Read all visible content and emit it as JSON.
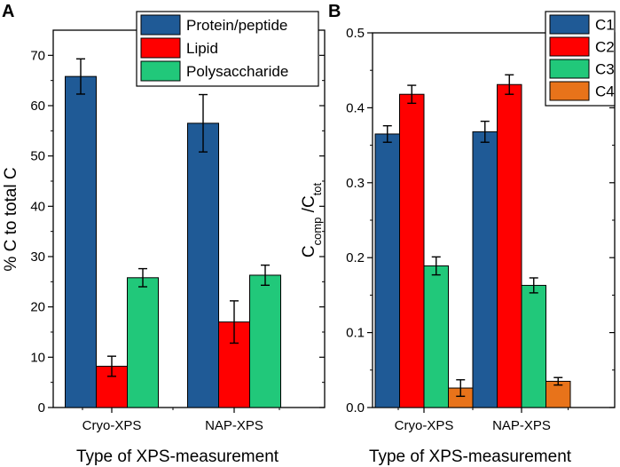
{
  "chart_data": [
    {
      "panel": "A",
      "type": "bar",
      "categories": [
        "Cryo-XPS",
        "NAP-XPS"
      ],
      "series": [
        {
          "name": "Protein/peptide",
          "color": "#1f5a96",
          "values": [
            65.8,
            56.5
          ],
          "errors": [
            3.5,
            5.7
          ]
        },
        {
          "name": "Lipid",
          "color": "#ff0000",
          "values": [
            8.2,
            17.0
          ],
          "errors": [
            2.0,
            4.2
          ]
        },
        {
          "name": "Polysaccharide",
          "color": "#21c87a",
          "values": [
            25.8,
            26.3
          ],
          "errors": [
            1.8,
            2.0
          ]
        }
      ],
      "ylim": [
        0,
        75
      ],
      "yticks": [
        0,
        10,
        20,
        30,
        40,
        50,
        60,
        70
      ],
      "ytick_labels": [
        "0",
        "10",
        "20",
        "30",
        "40",
        "50",
        "60",
        "70"
      ],
      "ylabel": "% C to total C",
      "xlabel": "Type of XPS-measurement",
      "legend": "top-right"
    },
    {
      "panel": "B",
      "type": "bar",
      "categories": [
        "Cryo-XPS",
        "NAP-XPS"
      ],
      "series": [
        {
          "name": "C1",
          "color": "#1f5a96",
          "values": [
            0.365,
            0.368
          ],
          "errors": [
            0.011,
            0.014
          ]
        },
        {
          "name": "C2",
          "color": "#ff0000",
          "values": [
            0.418,
            0.431
          ],
          "errors": [
            0.012,
            0.013
          ]
        },
        {
          "name": "C3",
          "color": "#21c87a",
          "values": [
            0.189,
            0.163
          ],
          "errors": [
            0.012,
            0.01
          ]
        },
        {
          "name": "C4",
          "color": "#e8731a",
          "values": [
            0.026,
            0.035
          ],
          "errors": [
            0.011,
            0.005
          ]
        }
      ],
      "ylim": [
        0,
        0.5
      ],
      "yticks": [
        0,
        0.1,
        0.2,
        0.3,
        0.4,
        0.5
      ],
      "ytick_labels": [
        "0.0",
        "0.1",
        "0.2",
        "0.3",
        "0.4",
        "0.5"
      ],
      "ylabel_main": "C",
      "ylabel_sub1": "comp",
      "ylabel_mid": " /C",
      "ylabel_sub2": "tot",
      "xlabel": "Type of XPS-measurement",
      "legend": "top-right"
    }
  ]
}
